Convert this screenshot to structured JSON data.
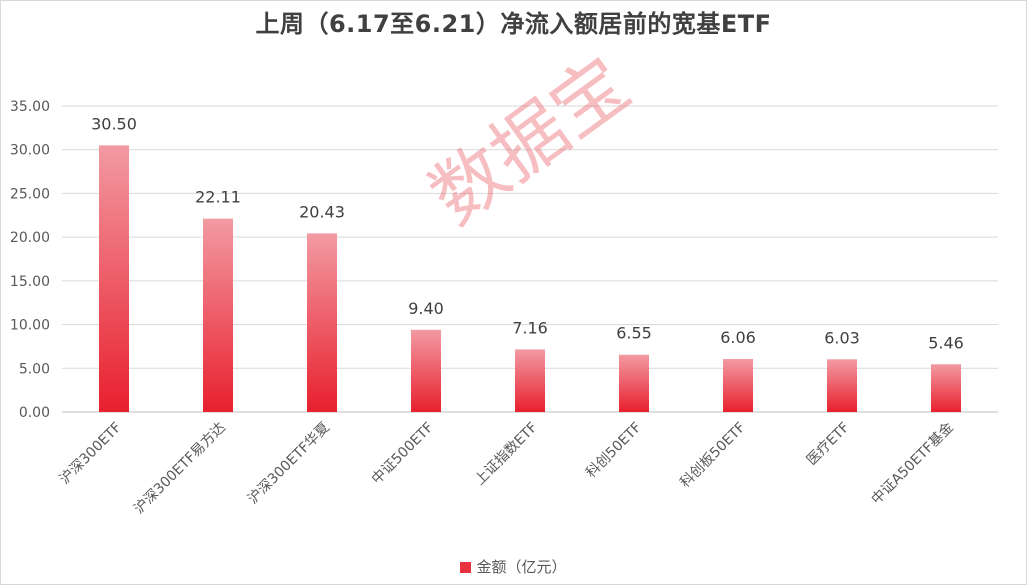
{
  "chart_data": {
    "type": "bar",
    "title": "上周（6.17至6.21）净流入额居前的宽基ETF",
    "categories": [
      "沪深300ETF",
      "沪深300ETF易方达",
      "沪深300ETF华夏",
      "中证500ETF",
      "上证指数ETF",
      "科创50ETF",
      "科创板50ETF",
      "医疗ETF",
      "中证A50ETF基金"
    ],
    "series": [
      {
        "name": "金额（亿元）",
        "values": [
          30.5,
          22.11,
          20.43,
          9.4,
          7.16,
          6.55,
          6.06,
          6.03,
          5.46
        ]
      }
    ],
    "data_labels": [
      "30.50",
      "22.11",
      "20.43",
      "9.40",
      "7.16",
      "6.55",
      "6.06",
      "6.03",
      "5.46"
    ],
    "yticks": [
      "0.00",
      "5.00",
      "10.00",
      "15.00",
      "20.00",
      "25.00",
      "30.00",
      "35.00"
    ],
    "ylim": [
      0,
      35
    ],
    "grid": true,
    "legend_position": "bottom",
    "colors": {
      "bar_top": "#f29aa2",
      "bar_bottom": "#e8202e",
      "grid": "#d9d9d9",
      "text": "#595959"
    }
  },
  "watermark": "数据宝"
}
